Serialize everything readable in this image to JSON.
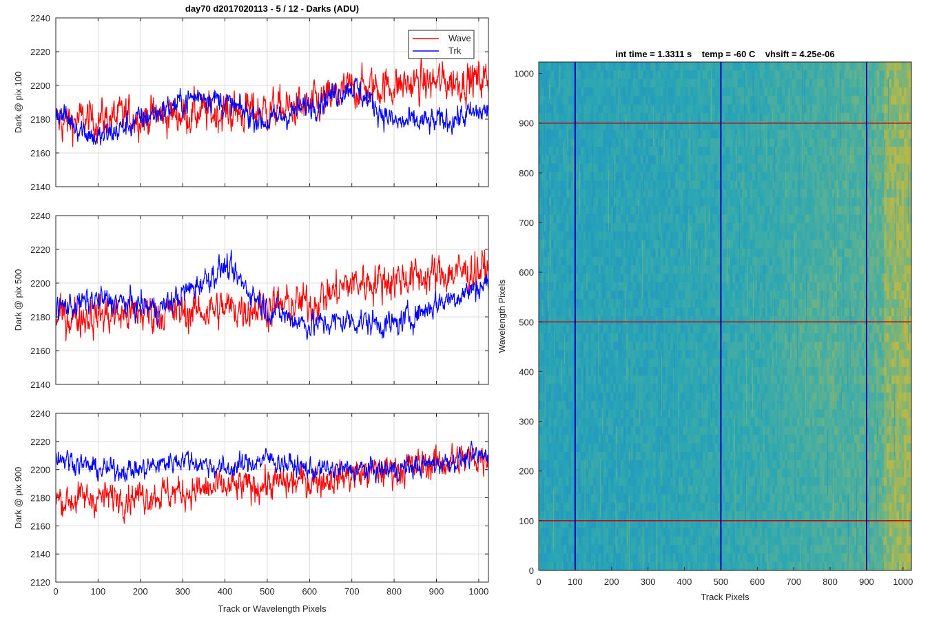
{
  "figure_title": "day70 d2017020113 - 5 / 12 - Darks (ADU)",
  "chart_data": [
    {
      "type": "line",
      "ylabel": "Dark @ pix 100",
      "xlim": [
        0,
        1023
      ],
      "ylim": [
        2140,
        2240
      ],
      "xticks": [
        0,
        100,
        200,
        300,
        400,
        500,
        600,
        700,
        800,
        900,
        1000
      ],
      "yticks": [
        2140,
        2160,
        2180,
        2200,
        2220,
        2240
      ],
      "grid": true,
      "legend": {
        "location": "top-right",
        "entries": [
          "Wave",
          "Trk"
        ]
      },
      "series": [
        {
          "name": "Wave",
          "color": "#ff0000",
          "trend_x": [
            0,
            200,
            400,
            600,
            700,
            800,
            1023
          ],
          "trend_y": [
            2178,
            2182,
            2184,
            2187,
            2198,
            2200,
            2204
          ],
          "noise": 9
        },
        {
          "name": "Trk",
          "color": "#0000ff",
          "trend_x": [
            0,
            100,
            200,
            350,
            500,
            600,
            700,
            800,
            900,
            1023
          ],
          "trend_y": [
            2185,
            2168,
            2180,
            2195,
            2178,
            2188,
            2200,
            2178,
            2178,
            2185
          ],
          "noise": 6
        }
      ]
    },
    {
      "type": "line",
      "ylabel": "Dark @ pix 500",
      "xlim": [
        0,
        1023
      ],
      "ylim": [
        2140,
        2240
      ],
      "xticks": [
        0,
        100,
        200,
        300,
        400,
        500,
        600,
        700,
        800,
        900,
        1000
      ],
      "yticks": [
        2140,
        2160,
        2180,
        2200,
        2220,
        2240
      ],
      "grid": true,
      "series": [
        {
          "name": "Wave",
          "color": "#ff0000",
          "trend_x": [
            0,
            300,
            600,
            700,
            1023
          ],
          "trend_y": [
            2180,
            2183,
            2188,
            2200,
            2208
          ],
          "noise": 9
        },
        {
          "name": "Trk",
          "color": "#0000ff",
          "trend_x": [
            0,
            100,
            250,
            400,
            500,
            600,
            700,
            800,
            900,
            1023
          ],
          "trend_y": [
            2185,
            2190,
            2185,
            2210,
            2185,
            2175,
            2178,
            2175,
            2188,
            2200
          ],
          "noise": 6
        }
      ]
    },
    {
      "type": "line",
      "ylabel": "Dark @ pix 900",
      "xlabel": "Track or Wavelength Pixels",
      "xlim": [
        0,
        1023
      ],
      "ylim": [
        2120,
        2240
      ],
      "xticks": [
        0,
        100,
        200,
        300,
        400,
        500,
        600,
        700,
        800,
        900,
        1000
      ],
      "yticks": [
        2120,
        2140,
        2160,
        2180,
        2200,
        2220,
        2240
      ],
      "grid": true,
      "series": [
        {
          "name": "Wave",
          "color": "#ff0000",
          "trend_x": [
            0,
            300,
            600,
            800,
            1023
          ],
          "trend_y": [
            2178,
            2184,
            2192,
            2200,
            2210
          ],
          "noise": 9
        },
        {
          "name": "Trk",
          "color": "#0000ff",
          "trend_x": [
            0,
            100,
            200,
            300,
            400,
            500,
            600,
            700,
            800,
            1023
          ],
          "trend_y": [
            2210,
            2200,
            2200,
            2208,
            2200,
            2208,
            2200,
            2200,
            2200,
            2210
          ],
          "noise": 6
        }
      ]
    },
    {
      "type": "heatmap",
      "title": "int time = 1.3311 s    temp = -60 C    vhsift = 4.25e-06",
      "xlabel": "Track Pixels",
      "ylabel": "Wavelength Pixels",
      "xlim": [
        0,
        1023
      ],
      "ylim": [
        0,
        1023
      ],
      "xticks": [
        0,
        100,
        200,
        300,
        400,
        500,
        600,
        700,
        800,
        900,
        1000
      ],
      "yticks": [
        0,
        100,
        200,
        300,
        400,
        500,
        600,
        700,
        800,
        900,
        1000
      ],
      "colormap": [
        "#1f8fc8",
        "#2aa6b4",
        "#52b09a",
        "#b5b84a",
        "#e3b935"
      ],
      "vertical_markers": {
        "color": "#0000b4",
        "x": [
          100,
          500,
          900
        ]
      },
      "horizontal_markers": {
        "color": "#cc0000",
        "y": [
          100,
          500,
          900
        ]
      }
    }
  ]
}
